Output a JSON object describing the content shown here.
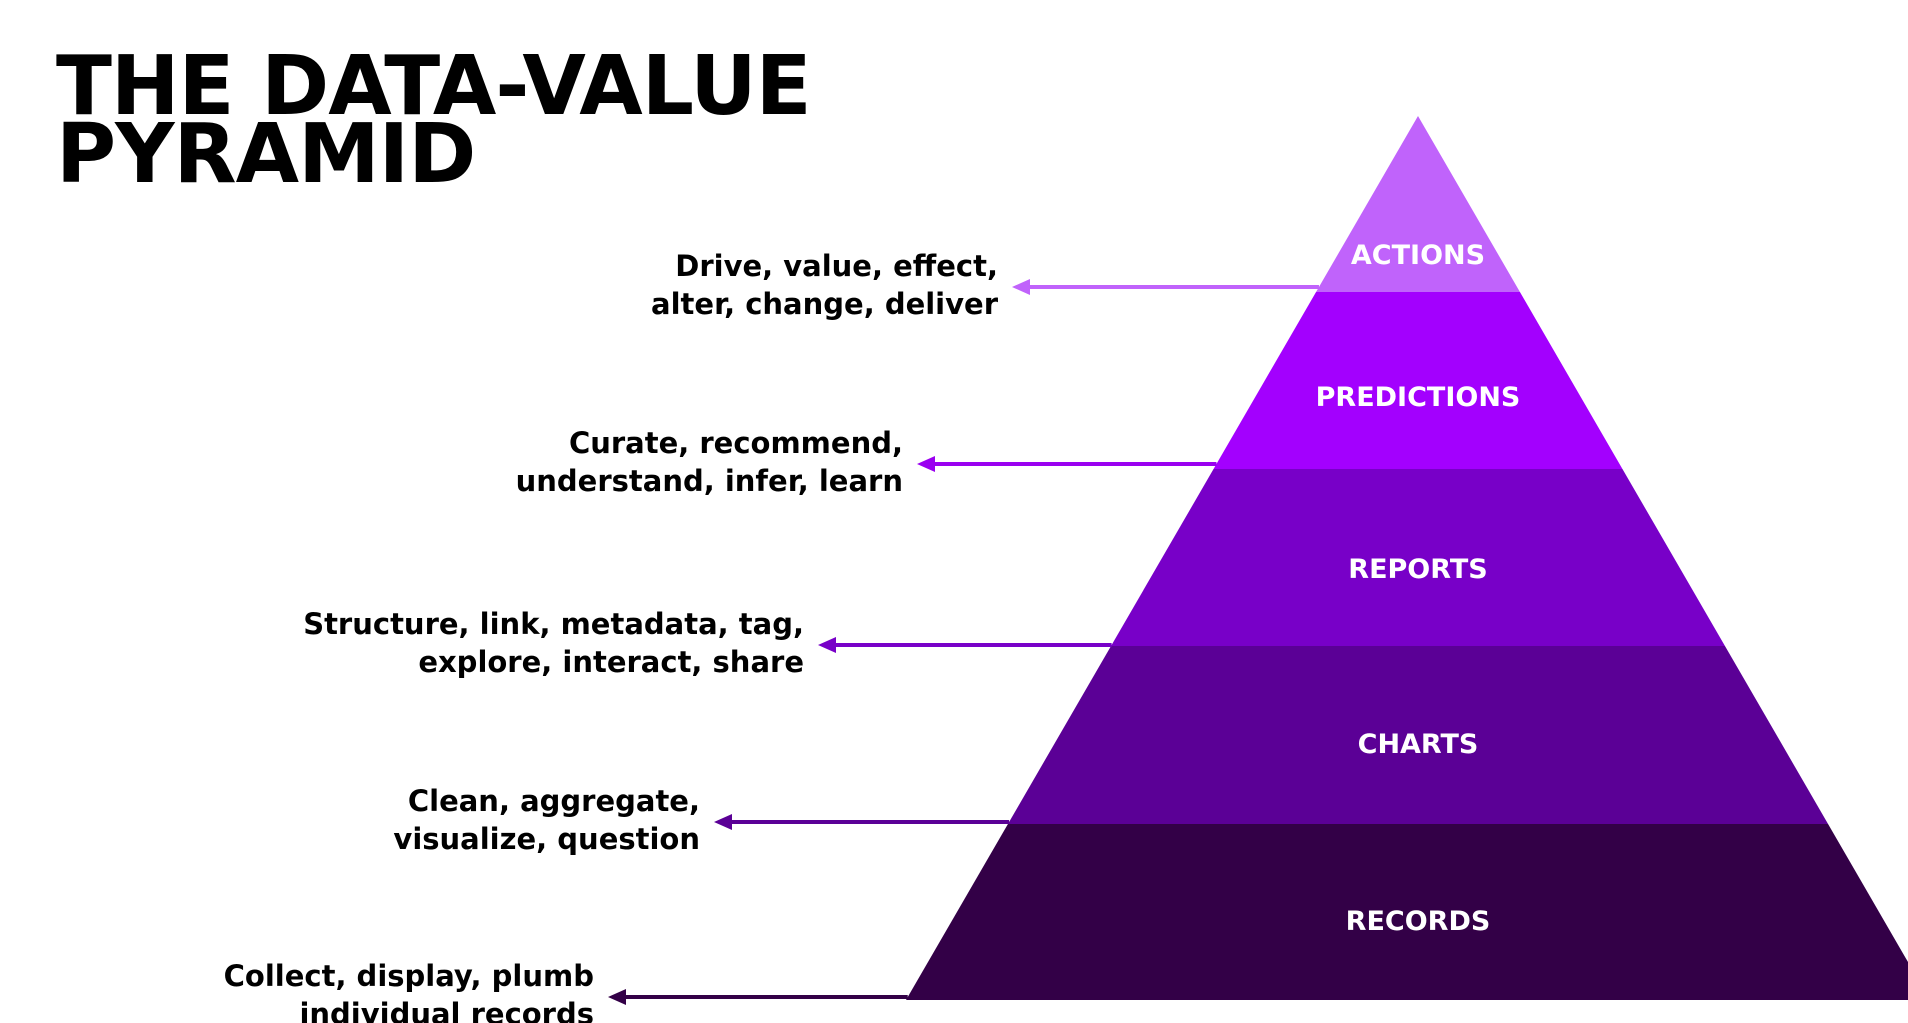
{
  "title": {
    "line1": "THE DATA-VALUE",
    "line2": "PYRAMID"
  },
  "layers": [
    {
      "label": "ACTIONS",
      "color": "#c063fb",
      "arrow_color": "#c063fb",
      "description": [
        "Drive, value, effect,",
        "alter, change, deliver"
      ]
    },
    {
      "label": "PREDICTIONS",
      "color": "#a300fe",
      "arrow_color": "#9a00f0",
      "description": [
        "Curate, recommend,",
        "understand, infer, learn"
      ]
    },
    {
      "label": "REPORTS",
      "color": "#7800c8",
      "arrow_color": "#7800c8",
      "description": [
        "Structure, link, metadata, tag,",
        "explore, interact, share"
      ]
    },
    {
      "label": "CHARTS",
      "color": "#5b0096",
      "arrow_color": "#5b0096",
      "description": [
        "Clean, aggregate,",
        "visualize, question"
      ]
    },
    {
      "label": "RECORDS",
      "color": "#330047",
      "arrow_color": "#330047",
      "description": [
        "Collect, display, plumb",
        "individual records"
      ]
    }
  ]
}
